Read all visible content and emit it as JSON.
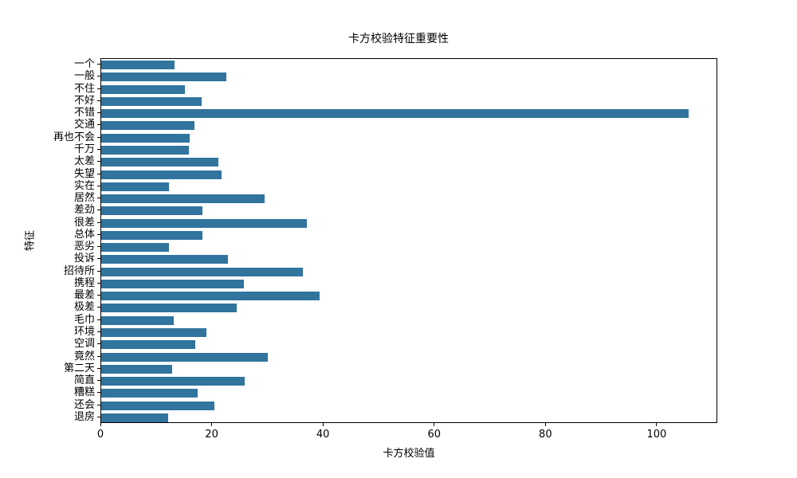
{
  "chart_data": {
    "type": "bar",
    "orientation": "horizontal",
    "title": "卡方校验特征重要性",
    "xlabel": "卡方校验值",
    "ylabel": "特征",
    "categories": [
      "一个",
      "一般",
      "不住",
      "不好",
      "不错",
      "交通",
      "再也不会",
      "千万",
      "太差",
      "失望",
      "实在",
      "居然",
      "差劲",
      "很差",
      "总体",
      "恶劣",
      "投诉",
      "招待所",
      "携程",
      "最差",
      "极差",
      "毛巾",
      "环境",
      "空调",
      "竟然",
      "第二天",
      "简直",
      "糟糕",
      "还会",
      "退房"
    ],
    "values": [
      13.2,
      22.5,
      15.1,
      18.1,
      105.6,
      16.8,
      15.9,
      15.8,
      21.1,
      21.7,
      12.2,
      29.4,
      18.2,
      37.0,
      18.2,
      12.2,
      22.8,
      36.3,
      25.7,
      39.2,
      24.3,
      13.0,
      18.9,
      16.9,
      30.0,
      12.8,
      25.8,
      17.4,
      20.4,
      12.1
    ],
    "xticks": [
      0,
      20,
      40,
      60,
      80,
      100
    ],
    "xlim": [
      0,
      110.9
    ],
    "grid": false,
    "bar_color": "#31749E",
    "axis_color": "#000000",
    "background_color": "#ffffff"
  }
}
